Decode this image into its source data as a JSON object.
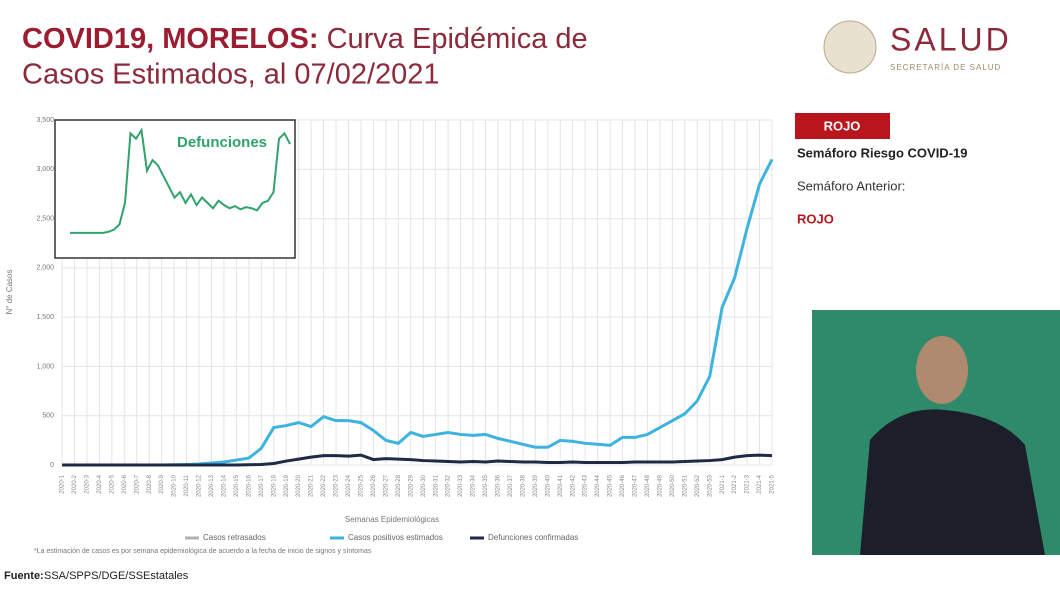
{
  "header": {
    "title_bold": "COVID19, MORELOS:",
    "title_rest_1": "Curva Epidémica de",
    "title_rest_2": "Casos Estimados, al 07/02/2021",
    "logo": "SALUD",
    "logo_sub": "SECRETARÍA DE SALUD"
  },
  "panel": {
    "badge": "ROJO",
    "risk": "Semáforo Riesgo COVID-19",
    "previous": "Semáforo Anterior:",
    "previous_value": "ROJO"
  },
  "footer": {
    "label": "Fuente:",
    "source": "SSA/SPPS/DGE/SSEstatales"
  },
  "chart_data": [
    {
      "type": "line",
      "x_label": "Semanas Epidemiológicas",
      "y_label": "N° de Casos",
      "note": "*La estimación de casos es por semana epidemiológica de acuerdo a la fecha de inicio de signos y síntomas",
      "categories": [
        "2020-1",
        "2020-2",
        "2020-3",
        "2020-4",
        "2020-5",
        "2020-6",
        "2020-7",
        "2020-8",
        "2020-9",
        "2020-10",
        "2020-11",
        "2020-12",
        "2020-13",
        "2020-14",
        "2020-15",
        "2020-16",
        "2020-17",
        "2020-18",
        "2020-19",
        "2020-20",
        "2020-21",
        "2020-22",
        "2020-23",
        "2020-24",
        "2020-25",
        "2020-26",
        "2020-27",
        "2020-28",
        "2020-29",
        "2020-30",
        "2020-31",
        "2020-32",
        "2020-33",
        "2020-34",
        "2020-35",
        "2020-36",
        "2020-37",
        "2020-38",
        "2020-39",
        "2020-40",
        "2020-41",
        "2020-42",
        "2020-43",
        "2020-44",
        "2020-45",
        "2020-46",
        "2020-47",
        "2020-48",
        "2020-49",
        "2020-50",
        "2020-51",
        "2020-52",
        "2020-53",
        "2021-1",
        "2021-2",
        "2021-3",
        "2021-4",
        "2021-5"
      ],
      "series": [
        {
          "name": "Casos retrasados",
          "color": "#b0b0b0",
          "values": [
            null,
            null,
            null,
            null,
            null,
            null,
            null,
            null,
            null,
            null,
            null,
            null,
            null,
            null,
            null,
            null,
            null,
            null,
            null,
            null,
            null,
            null,
            null,
            null,
            null,
            null,
            null,
            null,
            null,
            null,
            null,
            null,
            null,
            null,
            null,
            null,
            null,
            null,
            null,
            null,
            null,
            null,
            null,
            null,
            null,
            null,
            null,
            null,
            null,
            null,
            null,
            null,
            null,
            null,
            null,
            null,
            null,
            null
          ]
        },
        {
          "name": "Casos positivos estimados",
          "color": "#3fb3e0",
          "values": [
            0,
            0,
            0,
            0,
            0,
            0,
            0,
            0,
            0,
            2,
            5,
            10,
            20,
            30,
            50,
            70,
            170,
            380,
            400,
            430,
            390,
            490,
            450,
            450,
            430,
            350,
            250,
            220,
            330,
            290,
            310,
            330,
            310,
            300,
            310,
            270,
            240,
            210,
            180,
            180,
            250,
            240,
            220,
            210,
            200,
            280,
            280,
            310,
            380,
            450,
            520,
            650,
            900,
            1600,
            1900,
            2400,
            2850,
            3100
          ]
        },
        {
          "name": "Defunciones confirmadas",
          "color": "#1f2a44",
          "values": [
            0,
            0,
            0,
            0,
            0,
            0,
            0,
            0,
            0,
            0,
            0,
            0,
            0,
            0,
            0,
            2,
            5,
            15,
            40,
            60,
            80,
            95,
            95,
            90,
            100,
            55,
            65,
            60,
            55,
            45,
            40,
            35,
            30,
            35,
            30,
            40,
            35,
            30,
            30,
            25,
            25,
            30,
            25,
            25,
            25,
            25,
            30,
            30,
            30,
            30,
            35,
            40,
            45,
            55,
            80,
            95,
            100,
            95
          ]
        }
      ],
      "ylim": [
        0,
        3500
      ],
      "yticks": [
        0,
        500,
        {
          "value": 1000,
          "label": "1,000"
        },
        {
          "value": 1500,
          "label": "1,500"
        },
        {
          "value": 2000,
          "label": "2,000"
        },
        {
          "value": 2500,
          "label": "2,500"
        },
        {
          "value": 3000,
          "label": "3,000"
        },
        {
          "value": 3500,
          "label": "3,500"
        }
      ],
      "grid": true
    },
    {
      "type": "line",
      "title": "Defunciones",
      "color": "#2fa36b",
      "values": [
        2,
        2,
        2,
        2,
        2,
        2,
        2,
        3,
        5,
        10,
        30,
        95,
        90,
        98,
        60,
        70,
        65,
        55,
        45,
        35,
        40,
        30,
        38,
        28,
        35,
        30,
        25,
        32,
        28,
        25,
        27,
        24,
        26,
        25,
        23,
        30,
        32,
        40,
        90,
        95,
        85
      ],
      "ylim": [
        0,
        100
      ]
    }
  ]
}
